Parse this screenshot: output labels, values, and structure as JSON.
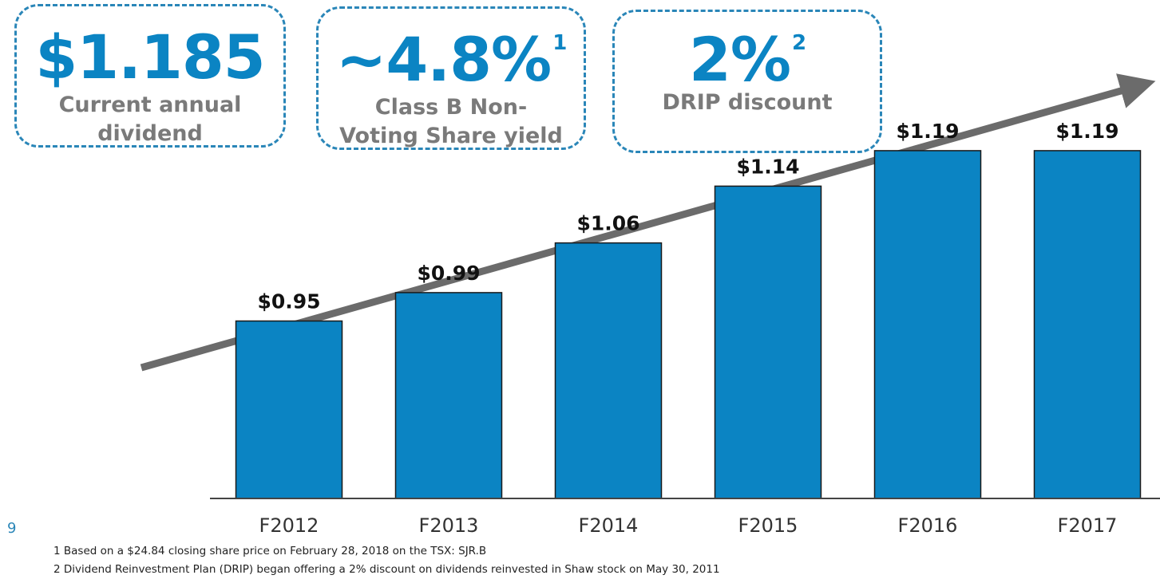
{
  "kpis": [
    {
      "value": "$1.185",
      "sup": "",
      "label_line1": "Current annual",
      "label_line2": "dividend"
    },
    {
      "value": "~4.8%",
      "sup": "1",
      "label_line1": "Class B Non-",
      "label_line2": "Voting Share yield"
    },
    {
      "value": "2%",
      "sup": "2",
      "label_line1": "DRIP discount",
      "label_line2": ""
    }
  ],
  "chart_data": {
    "type": "bar",
    "categories": [
      "F2012",
      "F2013",
      "F2014",
      "F2015",
      "F2016",
      "F2017"
    ],
    "values": [
      0.95,
      0.99,
      1.06,
      1.14,
      1.19,
      1.19
    ],
    "data_labels": [
      "$0.95",
      "$0.99",
      "$1.06",
      "$1.14",
      "$1.19",
      "$1.19"
    ],
    "title": "",
    "xlabel": "",
    "ylabel": "",
    "ylim": [
      0.7,
      1.2
    ],
    "grid": false,
    "bar_color": "#0b84c3",
    "trend_arrow": true,
    "arrow_color": "#6b6b6b"
  },
  "page_number": "9",
  "footnotes": [
    "1 Based on a $24.84 closing share price on February 28, 2018 on the TSX: SJR.B",
    "2 Dividend Reinvestment Plan (DRIP) began offering a 2% discount on dividends reinvested in Shaw stock on May 30, 2011"
  ],
  "colors": {
    "accent": "#0b84c3",
    "label_gray": "#7a7a7a",
    "box_border": "#2a86b8"
  }
}
